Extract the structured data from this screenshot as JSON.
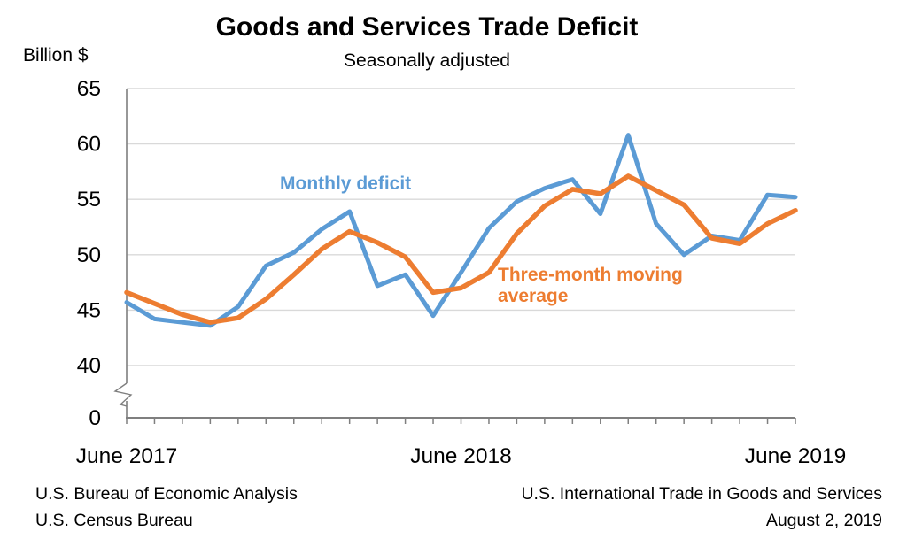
{
  "chart": {
    "title": "Goods and Services Trade Deficit",
    "subtitle": "Seasonally adjusted",
    "y_unit_label": "Billion $",
    "monthly_label": "Monthly deficit",
    "moving_avg_label": "Three-month moving average",
    "footer": {
      "left_line1": "U.S. Bureau of Economic Analysis",
      "left_line2": "U.S. Census Bureau",
      "right_line1": "U.S. International Trade in Goods and Services",
      "right_line2": "August 2, 2019"
    }
  },
  "chart_data": {
    "type": "line",
    "title": "Goods and Services Trade Deficit",
    "subtitle": "Seasonally adjusted",
    "ylabel": "Billion $",
    "grid": "horizontal",
    "legend_position": "inline-labels",
    "ylim_display": [
      40,
      65
    ],
    "y_axis": {
      "ticks": [
        65,
        60,
        55,
        50,
        45,
        40
      ],
      "zero_label": "0",
      "axis_break": true
    },
    "x_tick_labels": [
      "June 2017",
      "June 2018",
      "June 2019"
    ],
    "x_tick_label_positions": [
      0,
      12,
      24
    ],
    "x": [
      "Jun 2017",
      "Jul 2017",
      "Aug 2017",
      "Sep 2017",
      "Oct 2017",
      "Nov 2017",
      "Dec 2017",
      "Jan 2018",
      "Feb 2018",
      "Mar 2018",
      "Apr 2018",
      "May 2018",
      "Jun 2018",
      "Jul 2018",
      "Aug 2018",
      "Sep 2018",
      "Oct 2018",
      "Nov 2018",
      "Dec 2018",
      "Jan 2019",
      "Feb 2019",
      "Mar 2019",
      "Apr 2019",
      "May 2019",
      "Jun 2019"
    ],
    "series": [
      {
        "name": "Monthly deficit",
        "color": "#5B9BD5",
        "stroke_width": 5,
        "values": [
          45.7,
          44.2,
          43.9,
          43.6,
          45.3,
          49.0,
          50.2,
          52.3,
          53.9,
          47.2,
          48.2,
          44.5,
          48.4,
          52.4,
          54.8,
          56.0,
          56.8,
          53.7,
          60.8,
          52.8,
          50.0,
          51.7,
          51.3,
          55.4,
          55.2
        ]
      },
      {
        "name": "Three-month moving average",
        "color": "#ED7D31",
        "stroke_width": 5.5,
        "values": [
          46.6,
          45.6,
          44.6,
          43.9,
          44.3,
          46.0,
          48.2,
          50.5,
          52.1,
          51.1,
          49.8,
          46.6,
          47.0,
          48.4,
          51.9,
          54.4,
          55.9,
          55.5,
          57.1,
          55.8,
          54.5,
          51.5,
          51.0,
          52.8,
          54.0
        ]
      }
    ]
  },
  "colors": {
    "axis": "#7F7F7F",
    "gridline": "#D9D9D9",
    "text": "#000000",
    "monthly_line": "#5B9BD5",
    "moving_avg_line": "#ED7D31"
  }
}
